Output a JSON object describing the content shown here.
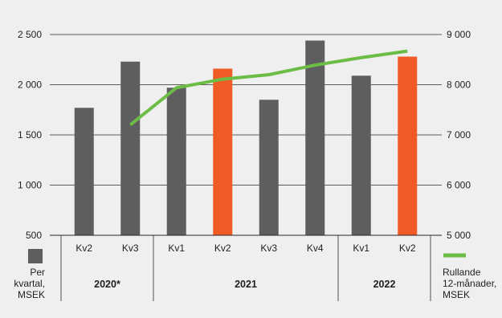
{
  "chart_data": {
    "type": "bar+line",
    "categories": [
      "Kv2",
      "Kv3",
      "Kv1",
      "Kv2",
      "Kv3",
      "Kv4",
      "Kv1",
      "Kv2"
    ],
    "groups": [
      {
        "label": "2020*",
        "categories": [
          "Kv2",
          "Kv3"
        ]
      },
      {
        "label": "2021",
        "categories": [
          "Kv1",
          "Kv2",
          "Kv3",
          "Kv4"
        ]
      },
      {
        "label": "2022",
        "categories": [
          "Kv1",
          "Kv2"
        ]
      }
    ],
    "series": [
      {
        "name": "Per kvartal, MSEK",
        "legend_lines": [
          "Per",
          "kvartal,",
          "MSEK"
        ],
        "type": "bar",
        "axis": "left",
        "values": [
          1770,
          2230,
          1970,
          2160,
          1850,
          2440,
          2090,
          2280
        ],
        "color": "#5e5d5f",
        "highlight_color": "#f05a24",
        "highlight_indices": [
          3,
          7
        ]
      },
      {
        "name": "Rullande 12-månader, MSEK",
        "legend_lines": [
          "Rullande",
          "12-månader,",
          "MSEK"
        ],
        "type": "line",
        "axis": "right",
        "values": [
          null,
          7200,
          7940,
          8110,
          8200,
          8390,
          8540,
          8670
        ],
        "color": "#6cbd45"
      }
    ],
    "y_left": {
      "min": 500,
      "max": 2500,
      "ticks": [
        "500",
        "1 000",
        "1 500",
        "2 000",
        "2 500"
      ],
      "tick_values": [
        500,
        1000,
        1500,
        2000,
        2500
      ]
    },
    "y_right": {
      "min": 5000,
      "max": 9000,
      "ticks": [
        "5 000",
        "6 000",
        "7 000",
        "8 000",
        "9 000"
      ],
      "tick_values": [
        5000,
        6000,
        7000,
        8000,
        9000
      ]
    },
    "grid": true,
    "legend_placement": "bottom"
  }
}
